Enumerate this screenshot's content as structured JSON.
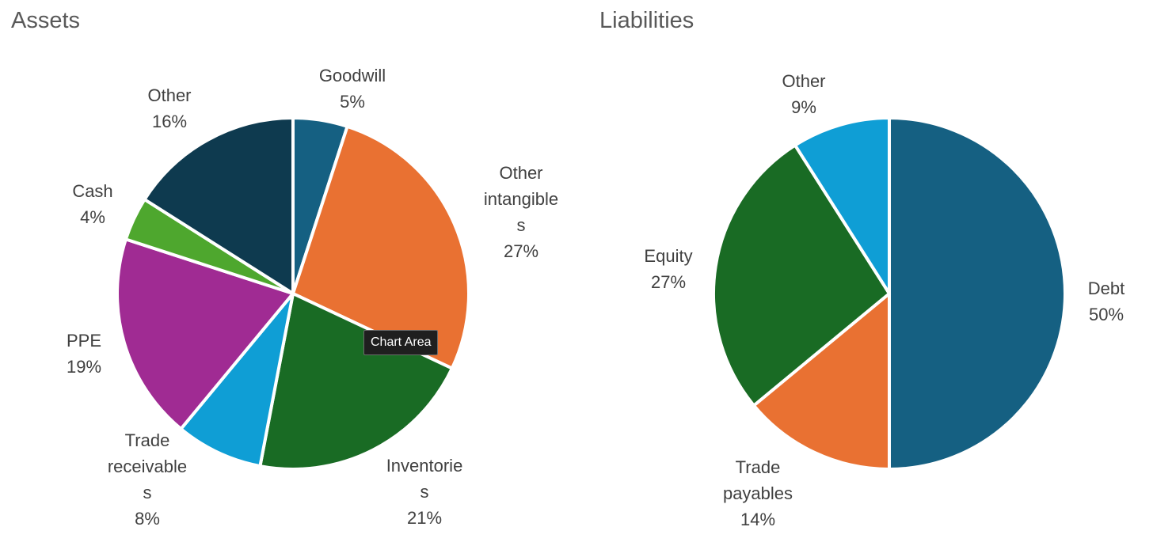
{
  "chart_data": [
    {
      "type": "pie",
      "title": "Assets",
      "slices": [
        {
          "label": [
            "Goodwill"
          ],
          "percent_label": "5%",
          "value": 5,
          "color": "#156082"
        },
        {
          "label": [
            "Other",
            "intangible",
            "s"
          ],
          "percent_label": "27%",
          "value": 27,
          "color": "#E97132"
        },
        {
          "label": [
            "Inventorie",
            "s"
          ],
          "percent_label": "21%",
          "value": 21,
          "color": "#196B24"
        },
        {
          "label": [
            "Trade",
            "receivable",
            "s"
          ],
          "percent_label": "8%",
          "value": 8,
          "color": "#0F9ED5"
        },
        {
          "label": [
            "PPE"
          ],
          "percent_label": "19%",
          "value": 19,
          "color": "#A02B93"
        },
        {
          "label": [
            "Cash"
          ],
          "percent_label": "4%",
          "value": 4,
          "color": "#4EA72E"
        },
        {
          "label": [
            "Other"
          ],
          "percent_label": "16%",
          "value": 16,
          "color": "#0E3A4F"
        }
      ]
    },
    {
      "type": "pie",
      "title": "Liabilities",
      "slices": [
        {
          "label": [
            "Debt"
          ],
          "percent_label": "50%",
          "value": 50,
          "color": "#156082"
        },
        {
          "label": [
            "Trade",
            "payables"
          ],
          "percent_label": "14%",
          "value": 14,
          "color": "#E97132"
        },
        {
          "label": [
            "Equity"
          ],
          "percent_label": "27%",
          "value": 27,
          "color": "#196B24"
        },
        {
          "label": [
            "Other"
          ],
          "percent_label": "9%",
          "value": 9,
          "color": "#0F9ED5"
        }
      ]
    }
  ],
  "tooltip": "Chart Area"
}
